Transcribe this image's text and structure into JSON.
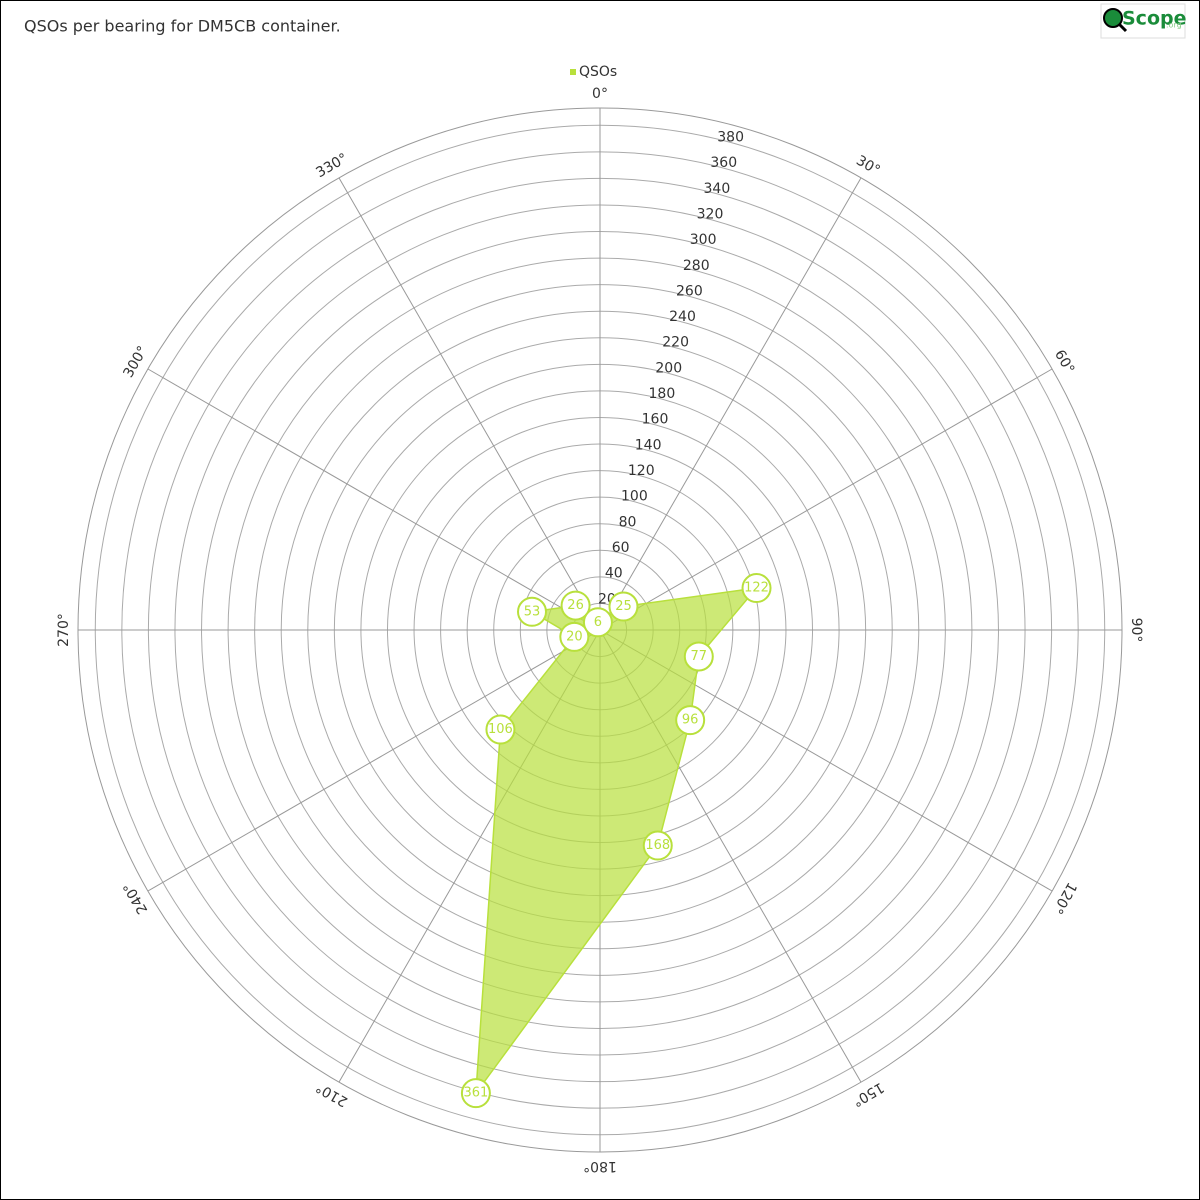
{
  "chart_data": {
    "type": "polar",
    "title": "QSOs per bearing for DM5CB container.",
    "logo": {
      "text": "Scope",
      "suffix": ".org"
    },
    "series": [
      {
        "name": "QSOs",
        "color": "#b8e03c",
        "x": [
          45,
          75,
          105,
          135,
          165,
          195,
          225,
          255,
          285,
          315,
          345
        ],
        "values": [
          25,
          122,
          77,
          96,
          168,
          361,
          106,
          20,
          53,
          26,
          6
        ]
      }
    ],
    "ylim": [
      0,
      393
    ],
    "yticks": [
      20,
      40,
      60,
      80,
      100,
      120,
      140,
      160,
      180,
      200,
      220,
      240,
      260,
      280,
      300,
      320,
      340,
      360,
      380
    ],
    "xticks": [
      {
        "value": 0,
        "label": "0°"
      },
      {
        "value": 30,
        "label": "30°"
      },
      {
        "value": 60,
        "label": "60°"
      },
      {
        "value": 90,
        "label": "90°"
      },
      {
        "value": 120,
        "label": "120°"
      },
      {
        "value": 150,
        "label": "150°"
      },
      {
        "value": 180,
        "label": "180°"
      },
      {
        "value": 210,
        "label": "210°"
      },
      {
        "value": 240,
        "label": "240°"
      },
      {
        "value": 270,
        "label": "270°"
      },
      {
        "value": 300,
        "label": "300°"
      },
      {
        "value": 330,
        "label": "330°"
      }
    ],
    "legend": "top"
  }
}
